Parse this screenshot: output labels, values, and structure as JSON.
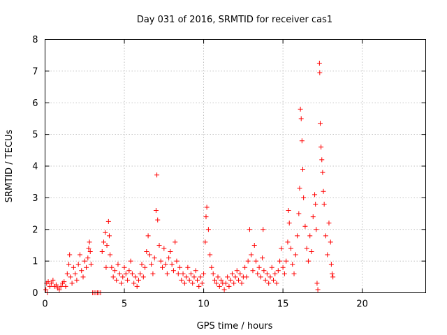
{
  "chart_data": {
    "type": "scatter",
    "title": "Day 031 of 2016, SRMTID for receiver cas1",
    "xlabel": "GPS time / hours",
    "ylabel": "SRMTID / TECUs",
    "xlim": [
      0,
      24
    ],
    "ylim": [
      0,
      8
    ],
    "xticks": [
      0,
      5,
      10,
      15,
      20
    ],
    "yticks": [
      0,
      1,
      2,
      3,
      4,
      5,
      6,
      7,
      8
    ],
    "grid": true,
    "marker": "+",
    "color": "#ff0000",
    "series": [
      {
        "name": "SRMTID",
        "points": [
          [
            0.05,
            0.1
          ],
          [
            0.1,
            0.3
          ],
          [
            0.15,
            0.0
          ],
          [
            0.2,
            0.35
          ],
          [
            0.3,
            0.2
          ],
          [
            0.4,
            0.3
          ],
          [
            0.5,
            0.4
          ],
          [
            0.6,
            0.2
          ],
          [
            0.7,
            0.25
          ],
          [
            0.8,
            0.15
          ],
          [
            0.9,
            0.1
          ],
          [
            1.0,
            0.2
          ],
          [
            1.1,
            0.3
          ],
          [
            1.2,
            0.35
          ],
          [
            1.3,
            0.2
          ],
          [
            1.4,
            0.6
          ],
          [
            1.5,
            0.9
          ],
          [
            1.55,
            1.2
          ],
          [
            1.6,
            0.5
          ],
          [
            1.7,
            0.3
          ],
          [
            1.8,
            0.8
          ],
          [
            1.9,
            0.6
          ],
          [
            2.0,
            0.4
          ],
          [
            2.1,
            0.9
          ],
          [
            2.2,
            1.2
          ],
          [
            2.3,
            0.7
          ],
          [
            2.4,
            0.5
          ],
          [
            2.5,
            1.0
          ],
          [
            2.6,
            0.8
          ],
          [
            2.7,
            1.1
          ],
          [
            2.75,
            1.4
          ],
          [
            2.8,
            1.6
          ],
          [
            2.85,
            1.3
          ],
          [
            2.9,
            0.9
          ],
          [
            3.0,
            0.0
          ],
          [
            3.1,
            0.0
          ],
          [
            3.2,
            0.0
          ],
          [
            3.3,
            0.0
          ],
          [
            3.4,
            0.0
          ],
          [
            3.5,
            0.0
          ],
          [
            3.6,
            1.3
          ],
          [
            3.7,
            1.6
          ],
          [
            3.8,
            1.9
          ],
          [
            3.85,
            0.8
          ],
          [
            3.9,
            1.5
          ],
          [
            4.0,
            2.25
          ],
          [
            4.05,
            1.8
          ],
          [
            4.1,
            1.2
          ],
          [
            4.2,
            0.8
          ],
          [
            4.3,
            0.5
          ],
          [
            4.4,
            0.7
          ],
          [
            4.5,
            0.4
          ],
          [
            4.6,
            0.9
          ],
          [
            4.7,
            0.6
          ],
          [
            4.8,
            0.3
          ],
          [
            4.9,
            0.5
          ],
          [
            5.0,
            0.8
          ],
          [
            5.1,
            0.6
          ],
          [
            5.2,
            0.4
          ],
          [
            5.3,
            0.7
          ],
          [
            5.4,
            1.0
          ],
          [
            5.5,
            0.6
          ],
          [
            5.6,
            0.3
          ],
          [
            5.7,
            0.5
          ],
          [
            5.8,
            0.2
          ],
          [
            5.9,
            0.4
          ],
          [
            6.0,
            0.6
          ],
          [
            6.1,
            0.9
          ],
          [
            6.2,
            0.5
          ],
          [
            6.3,
            0.8
          ],
          [
            6.4,
            1.3
          ],
          [
            6.5,
            1.8
          ],
          [
            6.6,
            1.2
          ],
          [
            6.7,
            0.9
          ],
          [
            6.8,
            0.6
          ],
          [
            6.9,
            1.1
          ],
          [
            7.0,
            2.6
          ],
          [
            7.05,
            3.72
          ],
          [
            7.1,
            2.3
          ],
          [
            7.2,
            1.5
          ],
          [
            7.3,
            1.0
          ],
          [
            7.4,
            0.8
          ],
          [
            7.5,
            1.4
          ],
          [
            7.6,
            0.9
          ],
          [
            7.7,
            0.6
          ],
          [
            7.8,
            1.1
          ],
          [
            7.9,
            1.3
          ],
          [
            8.0,
            0.9
          ],
          [
            8.1,
            0.7
          ],
          [
            8.2,
            1.6
          ],
          [
            8.3,
            1.0
          ],
          [
            8.4,
            0.6
          ],
          [
            8.5,
            0.8
          ],
          [
            8.6,
            0.4
          ],
          [
            8.7,
            0.6
          ],
          [
            8.8,
            0.3
          ],
          [
            8.9,
            0.5
          ],
          [
            9.0,
            0.8
          ],
          [
            9.1,
            0.4
          ],
          [
            9.2,
            0.6
          ],
          [
            9.3,
            0.3
          ],
          [
            9.4,
            0.5
          ],
          [
            9.5,
            0.7
          ],
          [
            9.6,
            0.4
          ],
          [
            9.7,
            0.2
          ],
          [
            9.8,
            0.5
          ],
          [
            9.9,
            0.3
          ],
          [
            10.0,
            0.6
          ],
          [
            10.1,
            1.6
          ],
          [
            10.15,
            2.4
          ],
          [
            10.2,
            2.7
          ],
          [
            10.3,
            2.0
          ],
          [
            10.4,
            1.2
          ],
          [
            10.5,
            0.8
          ],
          [
            10.6,
            0.6
          ],
          [
            10.7,
            0.4
          ],
          [
            10.8,
            0.3
          ],
          [
            10.9,
            0.5
          ],
          [
            11.0,
            0.2
          ],
          [
            11.1,
            0.4
          ],
          [
            11.2,
            0.3
          ],
          [
            11.3,
            0.1
          ],
          [
            11.4,
            0.3
          ],
          [
            11.5,
            0.5
          ],
          [
            11.6,
            0.2
          ],
          [
            11.7,
            0.4
          ],
          [
            11.8,
            0.6
          ],
          [
            11.9,
            0.3
          ],
          [
            12.0,
            0.5
          ],
          [
            12.1,
            0.7
          ],
          [
            12.2,
            0.4
          ],
          [
            12.3,
            0.6
          ],
          [
            12.4,
            0.3
          ],
          [
            12.5,
            0.5
          ],
          [
            12.6,
            0.8
          ],
          [
            12.7,
            0.5
          ],
          [
            12.8,
            1.0
          ],
          [
            12.9,
            2.0
          ],
          [
            13.0,
            1.2
          ],
          [
            13.1,
            0.7
          ],
          [
            13.2,
            1.5
          ],
          [
            13.3,
            1.0
          ],
          [
            13.4,
            0.6
          ],
          [
            13.5,
            0.8
          ],
          [
            13.6,
            0.5
          ],
          [
            13.7,
            1.1
          ],
          [
            13.75,
            2.0
          ],
          [
            13.8,
            0.7
          ],
          [
            13.9,
            0.4
          ],
          [
            14.0,
            0.6
          ],
          [
            14.1,
            0.3
          ],
          [
            14.2,
            0.5
          ],
          [
            14.3,
            0.8
          ],
          [
            14.4,
            0.4
          ],
          [
            14.5,
            0.6
          ],
          [
            14.6,
            0.3
          ],
          [
            14.7,
            0.7
          ],
          [
            14.8,
            1.0
          ],
          [
            14.9,
            1.4
          ],
          [
            15.0,
            0.8
          ],
          [
            15.1,
            0.6
          ],
          [
            15.2,
            1.0
          ],
          [
            15.3,
            1.6
          ],
          [
            15.35,
            2.6
          ],
          [
            15.4,
            2.2
          ],
          [
            15.5,
            1.4
          ],
          [
            15.6,
            0.9
          ],
          [
            15.7,
            0.6
          ],
          [
            15.8,
            1.2
          ],
          [
            15.9,
            1.8
          ],
          [
            16.0,
            2.5
          ],
          [
            16.05,
            3.3
          ],
          [
            16.1,
            5.8
          ],
          [
            16.15,
            5.5
          ],
          [
            16.2,
            4.8
          ],
          [
            16.25,
            3.9
          ],
          [
            16.3,
            3.0
          ],
          [
            16.4,
            2.1
          ],
          [
            16.5,
            1.4
          ],
          [
            16.6,
            1.0
          ],
          [
            16.7,
            1.8
          ],
          [
            16.8,
            1.3
          ],
          [
            16.9,
            2.4
          ],
          [
            17.0,
            3.1
          ],
          [
            17.05,
            2.8
          ],
          [
            17.1,
            2.0
          ],
          [
            17.15,
            0.3
          ],
          [
            17.2,
            0.1
          ],
          [
            17.3,
            7.25
          ],
          [
            17.32,
            6.95
          ],
          [
            17.35,
            5.35
          ],
          [
            17.4,
            4.6
          ],
          [
            17.45,
            4.2
          ],
          [
            17.5,
            3.8
          ],
          [
            17.55,
            3.2
          ],
          [
            17.6,
            2.8
          ],
          [
            17.7,
            1.8
          ],
          [
            17.8,
            1.2
          ],
          [
            17.9,
            2.2
          ],
          [
            18.0,
            1.6
          ],
          [
            18.05,
            0.9
          ],
          [
            18.1,
            0.6
          ],
          [
            18.15,
            0.5
          ]
        ]
      }
    ]
  }
}
